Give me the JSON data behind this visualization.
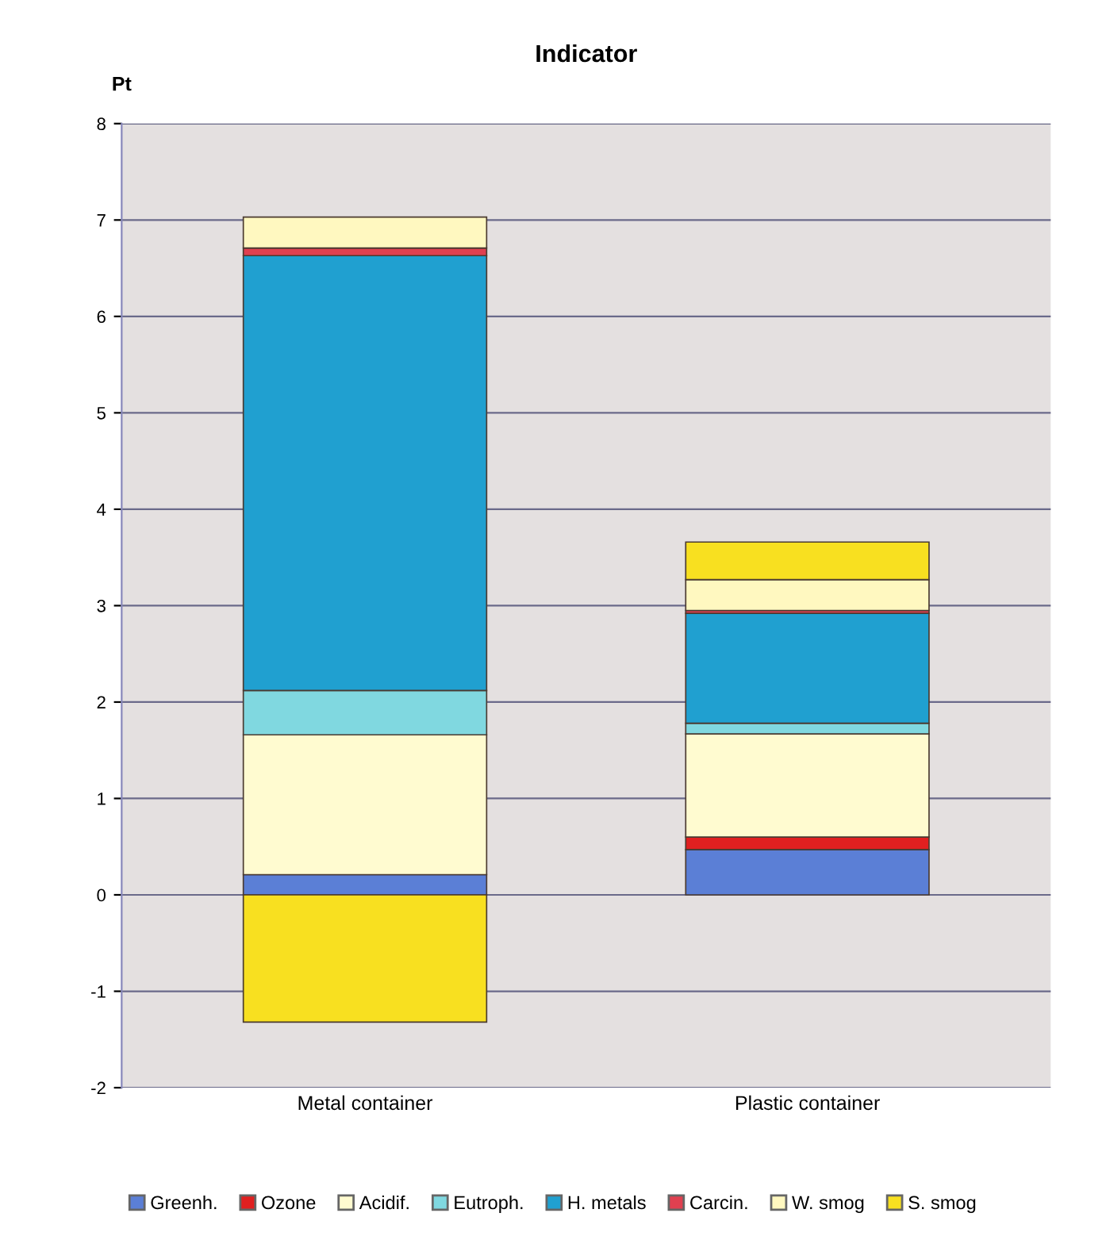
{
  "chart_data": {
    "type": "bar",
    "title": "Indicator",
    "ylabel": "Pt",
    "stacked": true,
    "categories": [
      "Metal container",
      "Plastic container"
    ],
    "series": [
      {
        "name": "Greenh.",
        "color": "#5b7fd6",
        "values": [
          0.21,
          0.47
        ]
      },
      {
        "name": "Ozone",
        "color": "#e02020",
        "values": [
          null,
          0.13
        ]
      },
      {
        "name": "Acidif.",
        "color": "#fffbd0",
        "values": [
          1.45,
          1.07
        ]
      },
      {
        "name": "Eutroph.",
        "color": "#80d8e0",
        "values": [
          0.46,
          0.11
        ]
      },
      {
        "name": "H. metals",
        "color": "#20a0d0",
        "values": [
          4.51,
          1.14
        ]
      },
      {
        "name": "Carcin.",
        "color": "#e04050",
        "values": [
          0.08,
          0.03
        ]
      },
      {
        "name": "W. smog",
        "color": "#fff8c0",
        "values": [
          0.32,
          0.32
        ]
      },
      {
        "name": "S. smog",
        "color": "#f8e020",
        "values": [
          -1.32,
          0.39
        ]
      }
    ],
    "ylim": [
      -2,
      8
    ],
    "yticks": [
      -2,
      -1,
      0,
      1,
      2,
      3,
      4,
      5,
      6,
      7,
      8
    ],
    "grid": "y",
    "legend": "bottom"
  }
}
